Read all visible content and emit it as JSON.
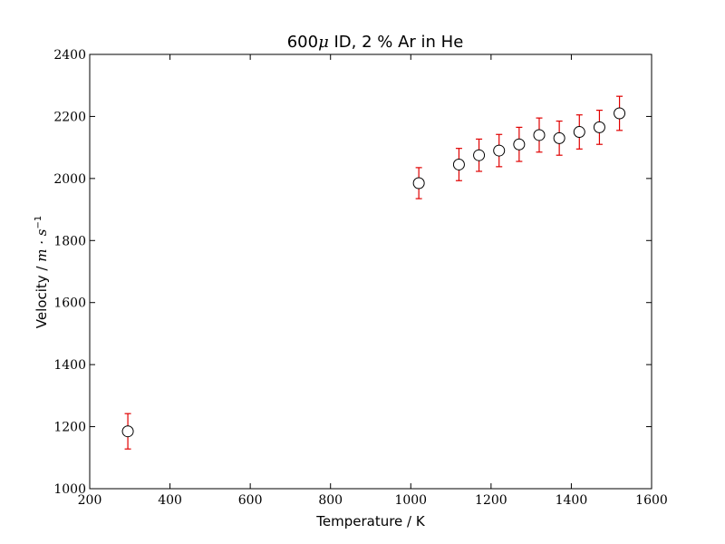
{
  "chart_data": {
    "type": "scatter",
    "title": {
      "prefix": "600",
      "mu": "μ",
      "suffix": " ID, 2 % Ar in He"
    },
    "xlabel": "Temperature / K",
    "ylabel": {
      "prefix": "Velocity / ",
      "unit": "m · s",
      "exponent": "−1"
    },
    "xlim": [
      200,
      1600
    ],
    "ylim": [
      1000,
      2400
    ],
    "xticks": [
      200,
      400,
      600,
      800,
      1000,
      1200,
      1400,
      1600
    ],
    "yticks": [
      1000,
      1200,
      1400,
      1600,
      1800,
      2000,
      2200,
      2400
    ],
    "grid": false,
    "series": [
      {
        "x": [
          295,
          1020,
          1120,
          1170,
          1220,
          1270,
          1320,
          1370,
          1420,
          1470,
          1520
        ],
        "y": [
          1185,
          1985,
          2045,
          2075,
          2090,
          2110,
          2140,
          2130,
          2150,
          2165,
          2210
        ],
        "yerr": [
          57,
          50,
          52,
          52,
          52,
          55,
          55,
          55,
          55,
          55,
          55
        ],
        "marker_fill": "#ffffff",
        "marker_edge": "#000000",
        "errorbar_color": "#e00000"
      }
    ]
  }
}
